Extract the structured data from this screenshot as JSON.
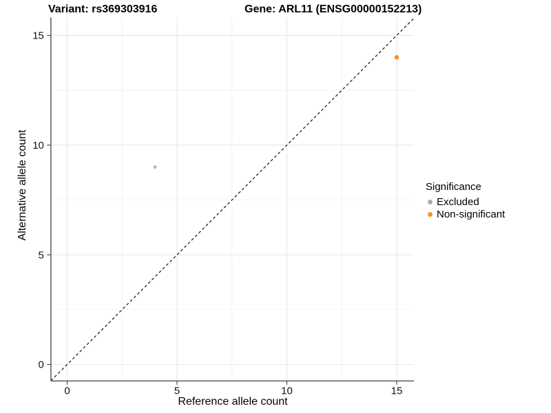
{
  "chart_data": {
    "type": "scatter",
    "title_left": "Variant: rs369303916",
    "title_right": "Gene: ARL11 (ENSG00000152213)",
    "xlabel": "Reference allele count",
    "ylabel": "Alternative allele count",
    "xlim": [
      -0.74,
      15.78
    ],
    "ylim": [
      -0.75,
      15.82
    ],
    "x_ticks": [
      0,
      5,
      10,
      15
    ],
    "y_ticks": [
      0,
      5,
      10,
      15
    ],
    "x_minor_ticks": [
      2.5,
      7.5,
      12.5
    ],
    "y_minor_ticks": [
      2.5,
      7.5,
      12.5
    ],
    "grid": true,
    "background": "#ffffff",
    "major_grid_color": "#e7e7e7",
    "minor_grid_color": "#f2f2f2",
    "axis_color": "#4d4d4d",
    "identity_line": {
      "equation": "y = x",
      "style": "dashed",
      "color": "#111111"
    },
    "series": [
      {
        "name": "Excluded",
        "color": "#b9b9b9",
        "marker_radius": 2.6,
        "points": [
          {
            "x": 4,
            "y": 9
          }
        ]
      },
      {
        "name": "Non-significant",
        "color": "#f7941e",
        "marker_radius": 3.3,
        "points": [
          {
            "x": 15,
            "y": 14
          }
        ]
      }
    ],
    "legend": {
      "title": "Significance",
      "position": "right",
      "entries": [
        {
          "label": "Excluded",
          "color": "#acacac"
        },
        {
          "label": "Non-significant",
          "color": "#f7941e"
        }
      ]
    }
  }
}
